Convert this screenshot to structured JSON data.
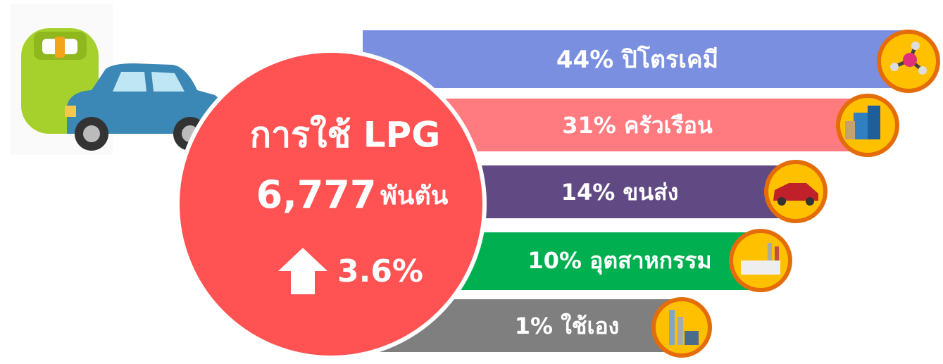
{
  "header": {
    "title": "การใช้ LPG",
    "total": "6,777",
    "unit": "พันตัน",
    "growth": "3.6%"
  },
  "segments": [
    {
      "share": "44%",
      "label": "ปิโตรเคมี"
    },
    {
      "share": "31%",
      "label": "ครัวเรือน"
    },
    {
      "share": "14%",
      "label": "ขนส่ง"
    },
    {
      "share": "10%",
      "label": "อุตสาหกรรม"
    },
    {
      "share": "1%",
      "label": "ใช้เอง"
    }
  ]
}
